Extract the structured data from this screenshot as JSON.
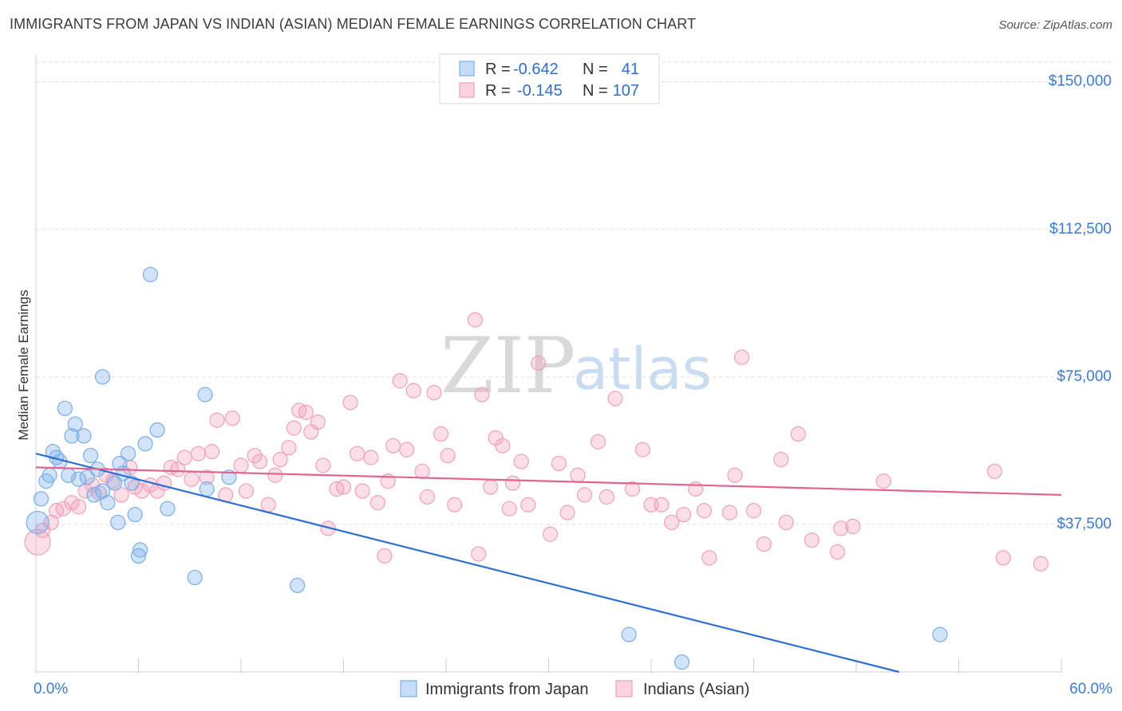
{
  "title": "IMMIGRANTS FROM JAPAN VS INDIAN (ASIAN) MEDIAN FEMALE EARNINGS CORRELATION CHART",
  "source": "Source: ZipAtlas.com",
  "watermark": {
    "part1": "ZIP",
    "part2": "atlas"
  },
  "colors": {
    "blue": "#7aaee8",
    "blue_line": "#2f6fd0",
    "pink": "#f0a0bc",
    "pink_line": "#e0648e",
    "axis_text": "#3d7bd0"
  },
  "legend": {
    "r_label": "R =",
    "n_label": "N =",
    "entries": [
      {
        "r": "-0.642",
        "n": "41",
        "color": "blue"
      },
      {
        "r": "-0.145",
        "n": "107",
        "color": "pink"
      }
    ]
  },
  "chart_data": {
    "type": "scatter",
    "title": "IMMIGRANTS FROM JAPAN VS INDIAN (ASIAN) MEDIAN FEMALE EARNINGS CORRELATION CHART",
    "xlabel": "",
    "ylabel": "Median Female Earnings",
    "xlim": [
      0,
      60
    ],
    "ylim": [
      0,
      155000
    ],
    "x_tick_labels": [
      "0.0%",
      "60.0%"
    ],
    "y_ticks": [
      37500,
      75000,
      112500,
      150000
    ],
    "y_tick_labels": [
      "$37,500",
      "$75,000",
      "$112,500",
      "$150,000"
    ],
    "grid": true,
    "series": [
      {
        "name": "Immigrants from Japan",
        "color": "blue",
        "trend": {
          "x": [
            0,
            50.5
          ],
          "y": [
            55500,
            0
          ]
        },
        "points": [
          [
            0.1,
            38000
          ],
          [
            0.3,
            44000
          ],
          [
            0.6,
            48500
          ],
          [
            0.8,
            50000
          ],
          [
            1.0,
            56000
          ],
          [
            1.2,
            54500
          ],
          [
            1.4,
            53500
          ],
          [
            1.7,
            67000
          ],
          [
            1.9,
            50000
          ],
          [
            2.1,
            60000
          ],
          [
            2.3,
            63000
          ],
          [
            2.5,
            49000
          ],
          [
            2.8,
            60000
          ],
          [
            3.0,
            49500
          ],
          [
            3.2,
            55000
          ],
          [
            3.4,
            45000
          ],
          [
            3.6,
            51500
          ],
          [
            3.9,
            46000
          ],
          [
            4.2,
            43000
          ],
          [
            3.9,
            75000
          ],
          [
            4.6,
            48000
          ],
          [
            4.8,
            38000
          ],
          [
            4.9,
            53000
          ],
          [
            5.1,
            50500
          ],
          [
            5.4,
            55500
          ],
          [
            5.6,
            48000
          ],
          [
            5.8,
            40000
          ],
          [
            6.0,
            29500
          ],
          [
            6.1,
            31000
          ],
          [
            6.4,
            58000
          ],
          [
            6.7,
            101000
          ],
          [
            7.1,
            61500
          ],
          [
            7.7,
            41500
          ],
          [
            9.3,
            24000
          ],
          [
            9.9,
            70500
          ],
          [
            10.0,
            46500
          ],
          [
            11.3,
            49500
          ],
          [
            15.3,
            22000
          ],
          [
            34.7,
            9500
          ],
          [
            37.8,
            2500
          ],
          [
            52.9,
            9500
          ]
        ]
      },
      {
        "name": "Indians (Asian)",
        "color": "pink",
        "trend": {
          "x": [
            0,
            60
          ],
          "y": [
            52000,
            45000
          ]
        },
        "points": [
          [
            0.1,
            33000
          ],
          [
            0.4,
            36000
          ],
          [
            0.9,
            38000
          ],
          [
            1.2,
            41000
          ],
          [
            1.6,
            41500
          ],
          [
            2.1,
            43000
          ],
          [
            2.5,
            42000
          ],
          [
            2.9,
            46000
          ],
          [
            3.3,
            47500
          ],
          [
            3.7,
            45500
          ],
          [
            4.1,
            50000
          ],
          [
            4.5,
            48500
          ],
          [
            5.0,
            45000
          ],
          [
            5.5,
            52000
          ],
          [
            5.8,
            47000
          ],
          [
            6.2,
            46000
          ],
          [
            6.7,
            47500
          ],
          [
            7.1,
            46000
          ],
          [
            7.5,
            48000
          ],
          [
            7.9,
            52000
          ],
          [
            8.3,
            51500
          ],
          [
            8.7,
            54500
          ],
          [
            9.1,
            49000
          ],
          [
            9.5,
            55500
          ],
          [
            10.0,
            49500
          ],
          [
            10.3,
            56000
          ],
          [
            10.6,
            64000
          ],
          [
            11.1,
            45000
          ],
          [
            11.5,
            64500
          ],
          [
            12.0,
            52500
          ],
          [
            12.3,
            46000
          ],
          [
            12.8,
            55000
          ],
          [
            13.1,
            53500
          ],
          [
            13.6,
            42500
          ],
          [
            14.0,
            50000
          ],
          [
            14.3,
            54000
          ],
          [
            14.8,
            57000
          ],
          [
            15.1,
            62000
          ],
          [
            15.4,
            66500
          ],
          [
            15.8,
            66000
          ],
          [
            16.1,
            61000
          ],
          [
            16.5,
            63500
          ],
          [
            16.8,
            52500
          ],
          [
            17.1,
            36500
          ],
          [
            17.6,
            46500
          ],
          [
            18.0,
            47000
          ],
          [
            18.4,
            68500
          ],
          [
            18.8,
            55500
          ],
          [
            19.1,
            46000
          ],
          [
            19.6,
            54500
          ],
          [
            20.0,
            43000
          ],
          [
            20.4,
            29500
          ],
          [
            20.6,
            48500
          ],
          [
            20.9,
            57500
          ],
          [
            21.3,
            74000
          ],
          [
            21.7,
            56500
          ],
          [
            22.1,
            71500
          ],
          [
            22.6,
            51000
          ],
          [
            22.9,
            44500
          ],
          [
            23.3,
            71000
          ],
          [
            23.7,
            60500
          ],
          [
            24.1,
            55000
          ],
          [
            24.5,
            42500
          ],
          [
            25.7,
            89500
          ],
          [
            25.9,
            30000
          ],
          [
            26.1,
            70500
          ],
          [
            26.6,
            47000
          ],
          [
            26.9,
            59500
          ],
          [
            27.3,
            57500
          ],
          [
            27.7,
            41500
          ],
          [
            27.9,
            48000
          ],
          [
            28.4,
            53500
          ],
          [
            28.8,
            42500
          ],
          [
            29.4,
            78500
          ],
          [
            30.1,
            35000
          ],
          [
            30.6,
            53000
          ],
          [
            31.1,
            40500
          ],
          [
            31.7,
            50000
          ],
          [
            32.1,
            45000
          ],
          [
            32.9,
            58500
          ],
          [
            33.4,
            44500
          ],
          [
            33.9,
            69500
          ],
          [
            34.9,
            46500
          ],
          [
            35.5,
            56500
          ],
          [
            36.0,
            42500
          ],
          [
            36.6,
            42500
          ],
          [
            37.2,
            38000
          ],
          [
            37.9,
            40000
          ],
          [
            38.6,
            46500
          ],
          [
            39.1,
            41000
          ],
          [
            39.4,
            29000
          ],
          [
            40.6,
            40500
          ],
          [
            40.9,
            50000
          ],
          [
            41.3,
            80000
          ],
          [
            42.0,
            41000
          ],
          [
            42.6,
            32500
          ],
          [
            43.6,
            54000
          ],
          [
            44.6,
            60500
          ],
          [
            43.9,
            38000
          ],
          [
            45.4,
            33500
          ],
          [
            46.9,
            30500
          ],
          [
            47.1,
            36500
          ],
          [
            47.8,
            37000
          ],
          [
            49.6,
            48500
          ],
          [
            56.1,
            51000
          ],
          [
            56.6,
            29000
          ],
          [
            58.8,
            27500
          ]
        ]
      }
    ]
  }
}
